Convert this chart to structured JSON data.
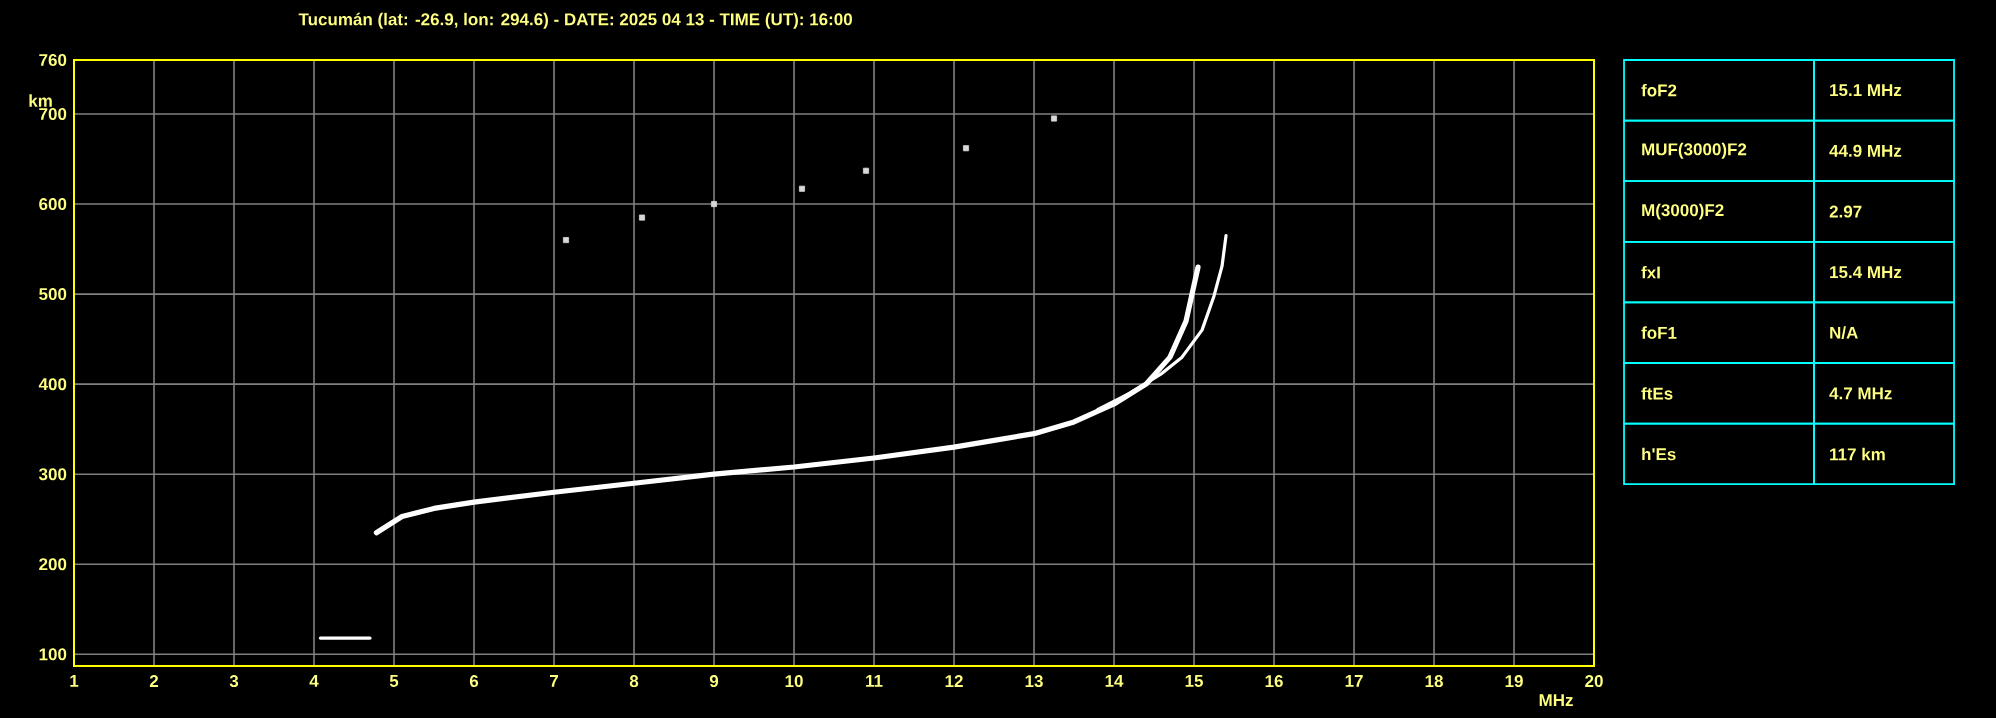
{
  "chart_data": [
    {
      "type": "line",
      "title": "Tucumán (lat: -26.9, lon: 294.6) - DATE: 2025 04 13 - TIME (UT): 16:00",
      "xlabel": "MHz",
      "ylabel": "km",
      "xlim": [
        1,
        20
      ],
      "ylim": [
        87,
        760
      ],
      "xticks": [
        1,
        2,
        3,
        4,
        5,
        6,
        7,
        8,
        9,
        10,
        11,
        12,
        13,
        14,
        15,
        16,
        17,
        18,
        19,
        20
      ],
      "yticks": [
        100,
        200,
        300,
        400,
        500,
        600,
        700,
        760
      ],
      "grid": true,
      "series": [
        {
          "type": "line",
          "color": "#ffffff",
          "x": [
            4.78,
            5.1,
            5.5,
            6,
            7,
            8,
            9,
            10,
            11,
            12,
            13,
            13.5,
            14,
            14.4,
            14.7,
            14.9,
            15.05
          ],
          "values": [
            235,
            253,
            262,
            269,
            280,
            290,
            300,
            308,
            318,
            330,
            345,
            358,
            378,
            400,
            430,
            470,
            530
          ]
        },
        {
          "type": "line",
          "color": "#ffffff",
          "x": [
            13.8,
            14.2,
            14.6,
            14.85,
            15.1,
            15.25,
            15.35,
            15.4
          ],
          "values": [
            372,
            390,
            412,
            430,
            460,
            498,
            531,
            565
          ]
        },
        {
          "type": "scatter",
          "color": "#d8d8d8",
          "x": [
            7.15,
            8.1,
            9,
            10.1,
            10.9,
            12.15,
            13.25
          ],
          "values": [
            560,
            585,
            600,
            617,
            637,
            662,
            695
          ]
        },
        {
          "type": "line",
          "color": "#ffffff",
          "x": [
            4.08,
            4.4,
            4.7
          ],
          "values": [
            118,
            118,
            118
          ]
        }
      ]
    },
    {
      "type": "other",
      "categories": [
        "foF2",
        "MUF(3000)F2",
        "M(3000)F2",
        "fxI",
        "foF1",
        "ftEs",
        "h'Es"
      ],
      "value_labels": [
        "15.1 MHz",
        "44.9 MHz",
        "2.97",
        "15.4 MHz",
        "N/A",
        "4.7 MHz",
        "117 km"
      ]
    }
  ]
}
